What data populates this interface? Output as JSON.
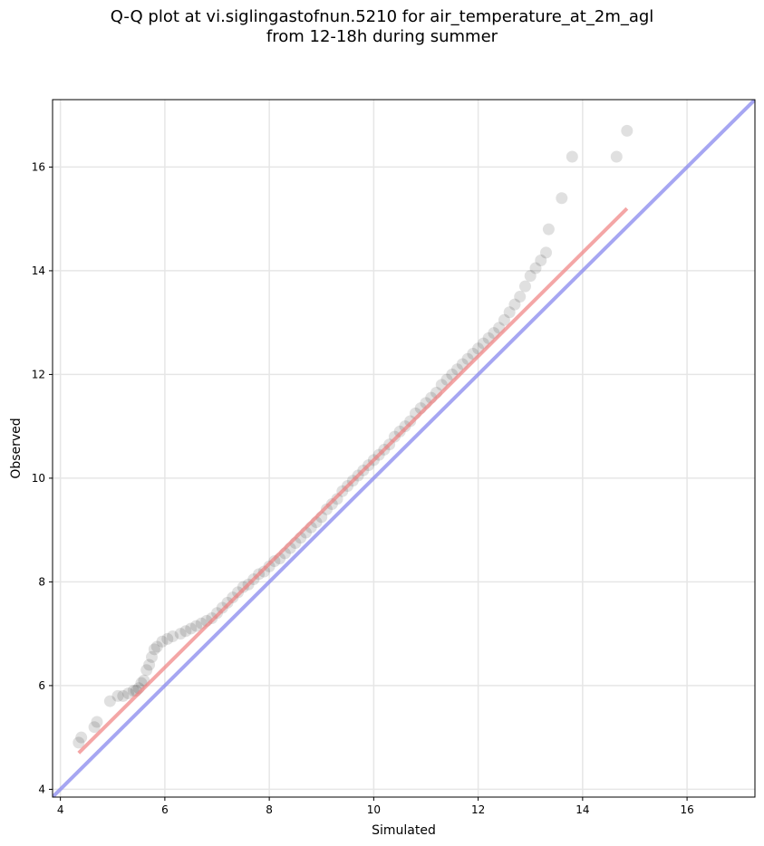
{
  "chart_data": {
    "type": "scatter",
    "title": "Q-Q plot at vi.siglingastofnun.5210 for air_temperature_at_2m_agl",
    "subtitle": "from 12-18h during summer",
    "xlabel": "Simulated",
    "ylabel": "Observed",
    "xlim": [
      3.85,
      17.3
    ],
    "ylim": [
      3.85,
      17.3
    ],
    "xticks": [
      4,
      6,
      8,
      10,
      12,
      14,
      16
    ],
    "yticks": [
      4,
      6,
      8,
      10,
      12,
      14,
      16
    ],
    "grid": true,
    "colors": {
      "points": "#000000",
      "fit_line": "#f08080",
      "identity_line": "#8888ee",
      "grid": "#e6e6e6"
    },
    "series": [
      {
        "kind": "quantile-points",
        "x": [
          4.35,
          4.4,
          4.65,
          4.7,
          4.95,
          5.1,
          5.2,
          5.3,
          5.4,
          5.45,
          5.5,
          5.55,
          5.6,
          5.65,
          5.7,
          5.75,
          5.8,
          5.85,
          5.95,
          6.05,
          6.15,
          6.3,
          6.4,
          6.5,
          6.6,
          6.7,
          6.8,
          6.9,
          7.0,
          7.1,
          7.2,
          7.3,
          7.4,
          7.5,
          7.6,
          7.7,
          7.8,
          7.9,
          8.0,
          8.1,
          8.2,
          8.3,
          8.4,
          8.5,
          8.6,
          8.7,
          8.8,
          8.9,
          9.0,
          9.1,
          9.2,
          9.3,
          9.4,
          9.5,
          9.6,
          9.7,
          9.8,
          9.9,
          10.0,
          10.1,
          10.2,
          10.3,
          10.4,
          10.5,
          10.6,
          10.7,
          10.8,
          10.9,
          11.0,
          11.1,
          11.2,
          11.3,
          11.4,
          11.5,
          11.6,
          11.7,
          11.8,
          11.9,
          12.0,
          12.1,
          12.2,
          12.3,
          12.4,
          12.5,
          12.6,
          12.7,
          12.8,
          12.9,
          13.0,
          13.1,
          13.2,
          13.3,
          13.35,
          13.6,
          13.8,
          14.65,
          14.85
        ],
        "y": [
          4.9,
          5.0,
          5.2,
          5.3,
          5.7,
          5.8,
          5.8,
          5.85,
          5.9,
          5.9,
          5.95,
          6.05,
          6.1,
          6.3,
          6.4,
          6.55,
          6.7,
          6.75,
          6.85,
          6.9,
          6.95,
          7.0,
          7.05,
          7.1,
          7.15,
          7.2,
          7.25,
          7.3,
          7.4,
          7.5,
          7.6,
          7.7,
          7.8,
          7.9,
          7.95,
          8.05,
          8.15,
          8.2,
          8.3,
          8.4,
          8.45,
          8.55,
          8.65,
          8.75,
          8.85,
          8.95,
          9.05,
          9.15,
          9.25,
          9.4,
          9.5,
          9.6,
          9.75,
          9.85,
          9.95,
          10.05,
          10.15,
          10.25,
          10.35,
          10.45,
          10.55,
          10.65,
          10.8,
          10.9,
          11.0,
          11.1,
          11.25,
          11.35,
          11.45,
          11.55,
          11.65,
          11.8,
          11.9,
          12.0,
          12.1,
          12.2,
          12.3,
          12.4,
          12.5,
          12.6,
          12.7,
          12.8,
          12.9,
          13.05,
          13.2,
          13.35,
          13.5,
          13.7,
          13.9,
          14.05,
          14.2,
          14.35,
          14.8,
          15.4,
          16.2,
          16.2,
          16.7
        ]
      },
      {
        "kind": "fit-line",
        "x": [
          4.35,
          14.85
        ],
        "y": [
          4.7,
          15.2
        ]
      },
      {
        "kind": "identity-line",
        "x": [
          3.85,
          17.3
        ],
        "y": [
          3.85,
          17.3
        ]
      }
    ]
  }
}
